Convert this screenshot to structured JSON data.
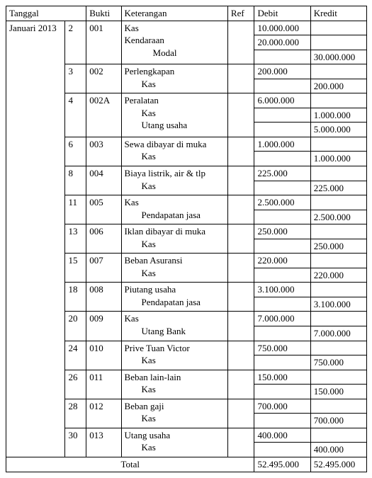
{
  "headers": {
    "tanggal": "Tanggal",
    "bukti": "Bukti",
    "keterangan": "Keterangan",
    "ref": "Ref",
    "debit": "Debit",
    "kredit": "Kredit"
  },
  "period": "Januari 2013",
  "entries": [
    {
      "day": "2",
      "bukti": "001",
      "lines": [
        {
          "text": "Kas",
          "indent": 0,
          "debit": "10.000.000",
          "kredit": ""
        },
        {
          "text": "Kendaraan",
          "indent": 0,
          "debit": "20.000.000",
          "kredit": ""
        },
        {
          "text": "Modal",
          "indent": 2,
          "debit": "",
          "kredit": "30.000.000"
        }
      ]
    },
    {
      "day": "3",
      "bukti": "002",
      "lines": [
        {
          "text": "Perlengkapan",
          "indent": 0,
          "debit": "200.000",
          "kredit": ""
        },
        {
          "text": "Kas",
          "indent": 1,
          "debit": "",
          "kredit": "200.000"
        }
      ]
    },
    {
      "day": "4",
      "bukti": "002A",
      "lines": [
        {
          "text": "Peralatan",
          "indent": 0,
          "debit": "6.000.000",
          "kredit": ""
        },
        {
          "text": "Kas",
          "indent": 1,
          "debit": "",
          "kredit": "1.000.000"
        },
        {
          "text": "Utang usaha",
          "indent": 1,
          "debit": "",
          "kredit": "5.000.000"
        }
      ]
    },
    {
      "day": "6",
      "bukti": "003",
      "lines": [
        {
          "text": "Sewa dibayar di muka",
          "indent": 0,
          "debit": "1.000.000",
          "kredit": ""
        },
        {
          "text": "Kas",
          "indent": 1,
          "debit": "",
          "kredit": "1.000.000"
        }
      ]
    },
    {
      "day": "8",
      "bukti": "004",
      "lines": [
        {
          "text": "Biaya listrik, air & tlp",
          "indent": 0,
          "debit": "225.000",
          "kredit": ""
        },
        {
          "text": "Kas",
          "indent": 1,
          "debit": "",
          "kredit": "225.000"
        }
      ]
    },
    {
      "day": "11",
      "bukti": "005",
      "lines": [
        {
          "text": "Kas",
          "indent": 0,
          "debit": "2.500.000",
          "kredit": ""
        },
        {
          "text": "Pendapatan jasa",
          "indent": 1,
          "debit": "",
          "kredit": "2.500.000"
        }
      ]
    },
    {
      "day": "13",
      "bukti": "006",
      "lines": [
        {
          "text": "Iklan dibayar di muka",
          "indent": 0,
          "debit": "250.000",
          "kredit": ""
        },
        {
          "text": "Kas",
          "indent": 1,
          "debit": "",
          "kredit": "250.000"
        }
      ]
    },
    {
      "day": "15",
      "bukti": "007",
      "lines": [
        {
          "text": "Beban Asuransi",
          "indent": 0,
          "debit": "220.000",
          "kredit": ""
        },
        {
          "text": "Kas",
          "indent": 1,
          "debit": "",
          "kredit": "220.000"
        }
      ]
    },
    {
      "day": "18",
      "bukti": "008",
      "lines": [
        {
          "text": "Piutang usaha",
          "indent": 0,
          "debit": "3.100.000",
          "kredit": ""
        },
        {
          "text": "Pendapatan jasa",
          "indent": 1,
          "debit": "",
          "kredit": "3.100.000"
        }
      ]
    },
    {
      "day": "20",
      "bukti": "009",
      "lines": [
        {
          "text": "Kas",
          "indent": 0,
          "debit": "7.000.000",
          "kredit": ""
        },
        {
          "text": "Utang Bank",
          "indent": 1,
          "debit": "",
          "kredit": "7.000.000"
        }
      ]
    },
    {
      "day": "24",
      "bukti": "010",
      "lines": [
        {
          "text": "Prive Tuan Victor",
          "indent": 0,
          "debit": "750.000",
          "kredit": ""
        },
        {
          "text": "Kas",
          "indent": 1,
          "debit": "",
          "kredit": "750.000"
        }
      ]
    },
    {
      "day": "26",
      "bukti": "011",
      "lines": [
        {
          "text": "Beban lain-lain",
          "indent": 0,
          "debit": "150.000",
          "kredit": ""
        },
        {
          "text": "Kas",
          "indent": 1,
          "debit": "",
          "kredit": "150.000"
        }
      ]
    },
    {
      "day": "28",
      "bukti": "012",
      "lines": [
        {
          "text": "Beban gaji",
          "indent": 0,
          "debit": "700.000",
          "kredit": ""
        },
        {
          "text": "Kas",
          "indent": 1,
          "debit": "",
          "kredit": "700.000"
        }
      ]
    },
    {
      "day": "30",
      "bukti": "013",
      "lines": [
        {
          "text": "Utang usaha",
          "indent": 0,
          "debit": "400.000",
          "kredit": ""
        },
        {
          "text": "Kas",
          "indent": 1,
          "debit": "",
          "kredit": "400.000"
        }
      ]
    }
  ],
  "total": {
    "label": "Total",
    "debit": "52.495.000",
    "kredit": "52.495.000"
  }
}
